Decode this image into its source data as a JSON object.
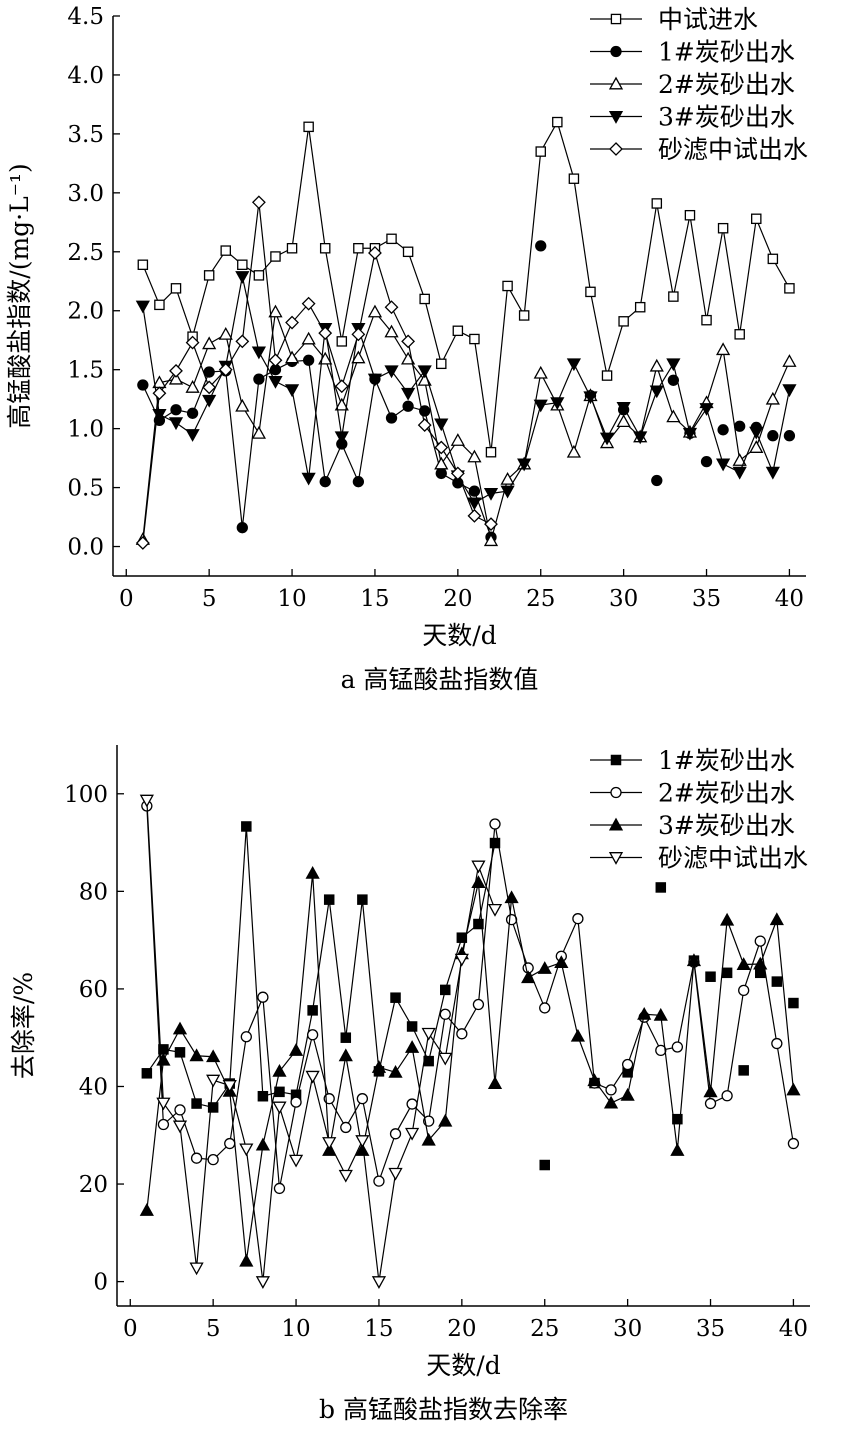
{
  "chart_data": [
    {
      "id": "a",
      "type": "line",
      "caption": "a 高锰酸盐指数值",
      "xlabel": "天数/d",
      "ylabel": "高锰酸盐指数/(mg·L⁻¹)",
      "xlim": [
        -0.8,
        41
      ],
      "ylim": [
        -0.25,
        4.5
      ],
      "xticks": [
        0,
        5,
        10,
        15,
        20,
        25,
        30,
        35,
        40
      ],
      "xtick_labels": [
        "0",
        "5",
        "10",
        "15",
        "20",
        "25",
        "30",
        "35",
        "40"
      ],
      "yticks": [
        0,
        0.5,
        1,
        1.5,
        2,
        2.5,
        3,
        3.5,
        4,
        4.5
      ],
      "ytick_labels": [
        "0.0",
        "0.5",
        "1.0",
        "1.5",
        "2.0",
        "2.5",
        "3.0",
        "3.5",
        "4.0",
        "4.5"
      ],
      "legend_position": "top-right",
      "series": [
        {
          "name": "中试进水",
          "marker": "square-open",
          "x": [
            1,
            2,
            3,
            4,
            5,
            6,
            7,
            8,
            9,
            10,
            11,
            12,
            13,
            14,
            15,
            16,
            17,
            18,
            19,
            20,
            21,
            22,
            23,
            24,
            25,
            26,
            27,
            28,
            29,
            30,
            31,
            32,
            33,
            34,
            35,
            36,
            37,
            38,
            39,
            40
          ],
          "y": [
            2.39,
            2.05,
            2.19,
            1.78,
            2.3,
            2.51,
            2.39,
            2.3,
            2.46,
            2.53,
            3.56,
            2.53,
            1.74,
            2.53,
            2.53,
            2.61,
            2.5,
            2.1,
            1.55,
            1.83,
            1.76,
            0.8,
            2.21,
            1.96,
            3.35,
            3.6,
            3.12,
            2.16,
            1.45,
            1.91,
            2.03,
            2.91,
            2.12,
            2.81,
            1.92,
            2.7,
            1.8,
            2.78,
            2.44,
            2.19
          ]
        },
        {
          "name": "1#炭砂出水",
          "marker": "circle-filled",
          "x": [
            1,
            2,
            3,
            4,
            5,
            6,
            7,
            8,
            9,
            10,
            11,
            12,
            13,
            14,
            15,
            16,
            17,
            18,
            19,
            20,
            21,
            22,
            23,
            24,
            25,
            26,
            27,
            28,
            29,
            30,
            31,
            32,
            33,
            34,
            35,
            36,
            37,
            38,
            39,
            40
          ],
          "y": [
            1.37,
            1.07,
            1.16,
            1.13,
            1.48,
            1.49,
            0.16,
            1.42,
            1.5,
            1.57,
            1.58,
            0.55,
            0.87,
            0.55,
            1.42,
            1.09,
            1.19,
            1.15,
            0.62,
            0.54,
            0.47,
            0.08,
            null,
            null,
            2.55,
            null,
            null,
            1.28,
            null,
            1.16,
            null,
            0.56,
            1.41,
            0.96,
            0.72,
            0.99,
            1.02,
            1.01,
            0.94,
            0.94
          ],
          "connected_until_x": 22
        },
        {
          "name": "2#炭砂出水",
          "marker": "triangle-up-open",
          "x": [
            1,
            2,
            3,
            4,
            5,
            6,
            7,
            8,
            9,
            10,
            11,
            12,
            13,
            14,
            15,
            16,
            17,
            18,
            19,
            20,
            21,
            22,
            23,
            24,
            25,
            26,
            27,
            28,
            29,
            30,
            31,
            32,
            33,
            34,
            35,
            36,
            37,
            38,
            39,
            40
          ],
          "y": [
            0.06,
            1.39,
            1.42,
            1.35,
            1.72,
            1.8,
            1.19,
            0.96,
            1.99,
            1.6,
            1.76,
            1.59,
            1.2,
            1.6,
            1.99,
            1.82,
            1.59,
            1.41,
            0.7,
            0.9,
            0.76,
            0.05,
            0.57,
            0.7,
            1.47,
            1.2,
            0.8,
            1.28,
            0.88,
            1.06,
            0.93,
            1.53,
            1.1,
            0.97,
            1.22,
            1.67,
            0.73,
            0.84,
            1.25,
            1.57
          ]
        },
        {
          "name": "3#炭砂出水",
          "marker": "triangle-down-filled",
          "x": [
            1,
            2,
            3,
            4,
            5,
            6,
            7,
            8,
            9,
            10,
            11,
            12,
            13,
            14,
            15,
            16,
            17,
            18,
            19,
            20,
            21,
            22,
            23,
            24,
            25,
            26,
            27,
            28,
            29,
            30,
            31,
            32,
            33,
            34,
            35,
            36,
            37,
            38,
            39,
            40
          ],
          "y": [
            2.04,
            1.12,
            1.05,
            0.95,
            1.24,
            1.53,
            2.29,
            1.65,
            1.4,
            1.33,
            0.58,
            1.85,
            0.93,
            1.85,
            1.42,
            1.49,
            1.3,
            1.49,
            1.04,
            0.6,
            0.37,
            0.45,
            0.47,
            0.7,
            1.2,
            1.22,
            1.55,
            1.27,
            0.92,
            1.18,
            0.93,
            1.32,
            1.55,
            0.96,
            1.17,
            0.7,
            0.63,
            0.97,
            0.63,
            1.33
          ]
        },
        {
          "name": "砂滤中试出水",
          "marker": "diamond-open",
          "x": [
            1,
            2,
            3,
            4,
            5,
            6,
            7,
            8,
            9,
            10,
            11,
            12,
            13,
            14,
            15,
            16,
            17,
            18,
            19,
            20,
            21,
            22
          ],
          "y": [
            0.03,
            1.3,
            1.49,
            1.73,
            1.35,
            1.5,
            1.74,
            2.92,
            1.58,
            1.9,
            2.06,
            1.81,
            1.36,
            1.8,
            2.49,
            2.03,
            1.74,
            1.03,
            0.84,
            0.62,
            0.26,
            0.19
          ]
        }
      ]
    },
    {
      "id": "b",
      "type": "line",
      "caption": "b 高锰酸盐指数去除率",
      "xlabel": "天数/d",
      "ylabel": "去除率/%",
      "xlim": [
        -0.8,
        41
      ],
      "ylim": [
        -5,
        110
      ],
      "xticks": [
        0,
        5,
        10,
        15,
        20,
        25,
        30,
        35,
        40
      ],
      "xtick_labels": [
        "0",
        "5",
        "10",
        "15",
        "20",
        "25",
        "30",
        "35",
        "40"
      ],
      "yticks": [
        0,
        20,
        40,
        60,
        80,
        100
      ],
      "ytick_labels": [
        "0",
        "20",
        "40",
        "60",
        "80",
        "100"
      ],
      "legend_position": "top-right",
      "series": [
        {
          "name": "1#炭砂出水",
          "marker": "square-filled",
          "x": [
            1,
            2,
            3,
            4,
            5,
            6,
            7,
            8,
            9,
            10,
            11,
            12,
            13,
            14,
            15,
            16,
            17,
            18,
            19,
            20,
            21,
            22,
            23,
            24,
            25,
            26,
            27,
            28,
            29,
            30,
            31,
            32,
            33,
            34,
            35,
            36,
            37,
            38,
            39,
            40
          ],
          "y": [
            42.7,
            47.6,
            47.0,
            36.5,
            35.7,
            40.6,
            93.3,
            38.0,
            38.9,
            38.3,
            55.6,
            78.3,
            50.0,
            78.3,
            43.1,
            58.2,
            52.3,
            45.2,
            59.8,
            70.5,
            73.3,
            89.9,
            null,
            null,
            23.9,
            null,
            null,
            40.7,
            null,
            42.9,
            null,
            80.8,
            33.3,
            65.8,
            62.5,
            63.3,
            43.3,
            63.3,
            61.5,
            57.1
          ],
          "connected_until_x": 22
        },
        {
          "name": "2#炭砂出水",
          "marker": "circle-open",
          "x": [
            1,
            2,
            3,
            4,
            5,
            6,
            7,
            8,
            9,
            10,
            11,
            12,
            13,
            14,
            15,
            16,
            17,
            18,
            19,
            20,
            21,
            22,
            23,
            24,
            25,
            26,
            27,
            28,
            29,
            30,
            31,
            32,
            33,
            34,
            35,
            36,
            37,
            38,
            39,
            40
          ],
          "y": [
            97.5,
            32.2,
            35.2,
            25.3,
            25.0,
            28.3,
            50.2,
            58.3,
            19.1,
            36.8,
            50.6,
            37.5,
            31.6,
            37.5,
            20.6,
            30.3,
            36.4,
            32.9,
            54.8,
            50.8,
            56.8,
            93.8,
            74.2,
            64.3,
            56.1,
            66.7,
            74.4,
            40.7,
            39.3,
            44.5,
            54.2,
            47.4,
            48.1,
            65.5,
            36.5,
            38.1,
            59.7,
            69.8,
            48.8,
            28.3
          ]
        },
        {
          "name": "3#炭砂出水",
          "marker": "triangle-up-filled",
          "x": [
            1,
            2,
            3,
            4,
            5,
            6,
            7,
            8,
            9,
            10,
            11,
            12,
            13,
            14,
            15,
            16,
            17,
            18,
            19,
            20,
            21,
            22,
            23,
            24,
            25,
            26,
            27,
            28,
            29,
            30,
            31,
            32,
            33,
            34,
            35,
            36,
            37,
            38,
            39,
            40
          ],
          "y": [
            14.6,
            45.4,
            51.8,
            46.3,
            46.1,
            39.0,
            4.2,
            28.0,
            43.1,
            47.4,
            83.7,
            26.9,
            46.3,
            26.9,
            43.9,
            42.9,
            48.0,
            29.0,
            32.9,
            67.2,
            81.8,
            40.6,
            78.7,
            62.3,
            64.2,
            65.4,
            50.3,
            41.2,
            36.6,
            38.2,
            54.8,
            54.6,
            26.9,
            65.8,
            38.9,
            74.1,
            65.0,
            65.1,
            74.2,
            39.3
          ]
        },
        {
          "name": "砂滤中试出水",
          "marker": "triangle-down-open",
          "x": [
            1,
            2,
            3,
            4,
            5,
            6,
            7,
            8,
            9,
            10,
            11,
            12,
            13,
            14,
            15,
            16,
            17,
            18,
            19,
            20,
            21,
            22
          ],
          "y": [
            98.7,
            36.6,
            31.9,
            2.8,
            41.3,
            40.2,
            27.2,
            0,
            35.8,
            24.9,
            42.1,
            28.5,
            21.8,
            28.9,
            0,
            22.2,
            30.4,
            50.9,
            45.8,
            66.1,
            85.2,
            76.3
          ]
        }
      ]
    }
  ]
}
